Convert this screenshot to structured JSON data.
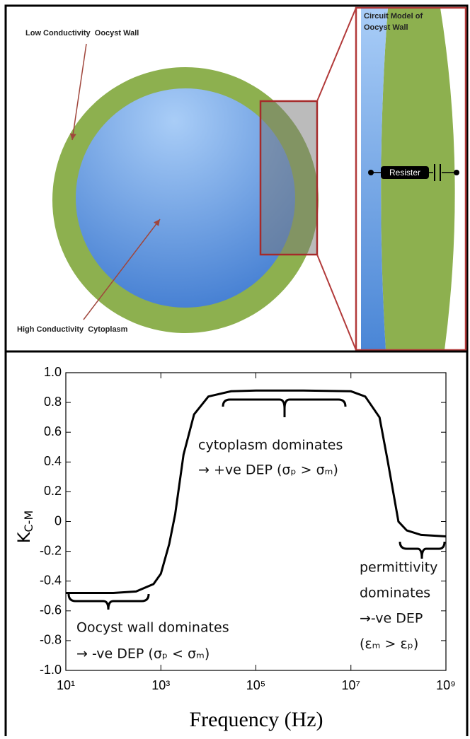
{
  "diagram": {
    "outer_label": "Low Conductivity  Oocyst Wall",
    "inner_label": "High Conductivity  Cytoplasm",
    "circuit_title": [
      "Circuit Model of",
      "Oocyst Wall"
    ],
    "resistor": "Resister"
  },
  "chart_data": {
    "type": "line",
    "xlabel": "Frequency (Hz)",
    "ylabel": {
      "main": "K",
      "sub": "C-M"
    },
    "log_x": true,
    "x": [
      10,
      100,
      300,
      700,
      1000,
      1500,
      2000,
      3000,
      5000,
      10000,
      30000,
      100000,
      1000000,
      10000000,
      20000000,
      40000000,
      60000000,
      100000000,
      150000000,
      300000000,
      1000000000
    ],
    "series": [
      {
        "color": "#000000",
        "values": [
          -0.48,
          -0.48,
          -0.47,
          -0.42,
          -0.35,
          -0.15,
          0.05,
          0.45,
          0.72,
          0.84,
          0.875,
          0.88,
          0.88,
          0.875,
          0.84,
          0.7,
          0.4,
          0.0,
          -0.06,
          -0.09,
          -0.1
        ]
      }
    ],
    "xlim": [
      10,
      1000000000
    ],
    "xticks": [
      {
        "value": 10,
        "label": "10¹"
      },
      {
        "value": 1000,
        "label": "10³"
      },
      {
        "value": 100000,
        "label": "10⁵"
      },
      {
        "value": 10000000,
        "label": "10⁷"
      },
      {
        "value": 1000000000,
        "label": "10⁹"
      }
    ],
    "ylim": [
      -1,
      1
    ],
    "yticks": [
      {
        "value": -1,
        "label": "-1.0"
      },
      {
        "value": -0.8,
        "label": "-0.8"
      },
      {
        "value": -0.6,
        "label": "-0.6"
      },
      {
        "value": -0.4,
        "label": "-0.4"
      },
      {
        "value": -0.2,
        "label": "-0.2"
      },
      0,
      0.2,
      0.4,
      0.6,
      0.8,
      {
        "value": 1,
        "label": "1.0"
      }
    ],
    "annotations": [
      [
        "cytoplasm dominates",
        "→ +ve DEP (σₚ > σₘ)"
      ],
      [
        "Oocyst wall dominates",
        "→ -ve DEP (σₚ < σₘ)"
      ],
      [
        "permittivity",
        "dominates",
        "→-ve DEP",
        "(εₘ > εₚ)"
      ]
    ]
  }
}
